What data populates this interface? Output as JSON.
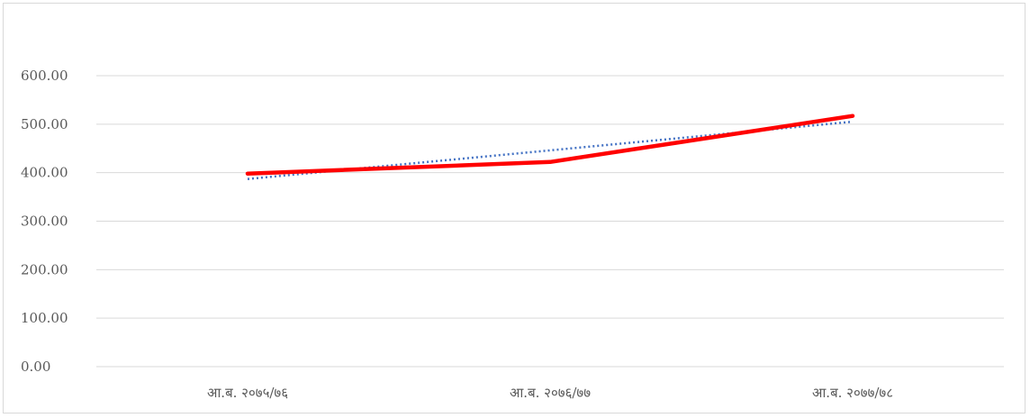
{
  "chart_data": {
    "type": "line",
    "title": "",
    "xlabel": "",
    "ylabel": "",
    "categories": [
      "आ.ब. २०७५/७६",
      "आ.ब. २०७६/७७",
      "आ.ब. २०७७/७८"
    ],
    "y_ticks": [
      "0.00",
      "100.00",
      "200.00",
      "300.00",
      "400.00",
      "500.00",
      "600.00"
    ],
    "ylim": [
      0,
      600
    ],
    "grid": true,
    "legend": "none",
    "series": [
      {
        "values": [
          398,
          422,
          517
        ],
        "color": "#ff0000",
        "style": "solid"
      },
      {
        "values": [
          387,
          446,
          505
        ],
        "color": "#4472c4",
        "style": "dotted"
      }
    ]
  }
}
